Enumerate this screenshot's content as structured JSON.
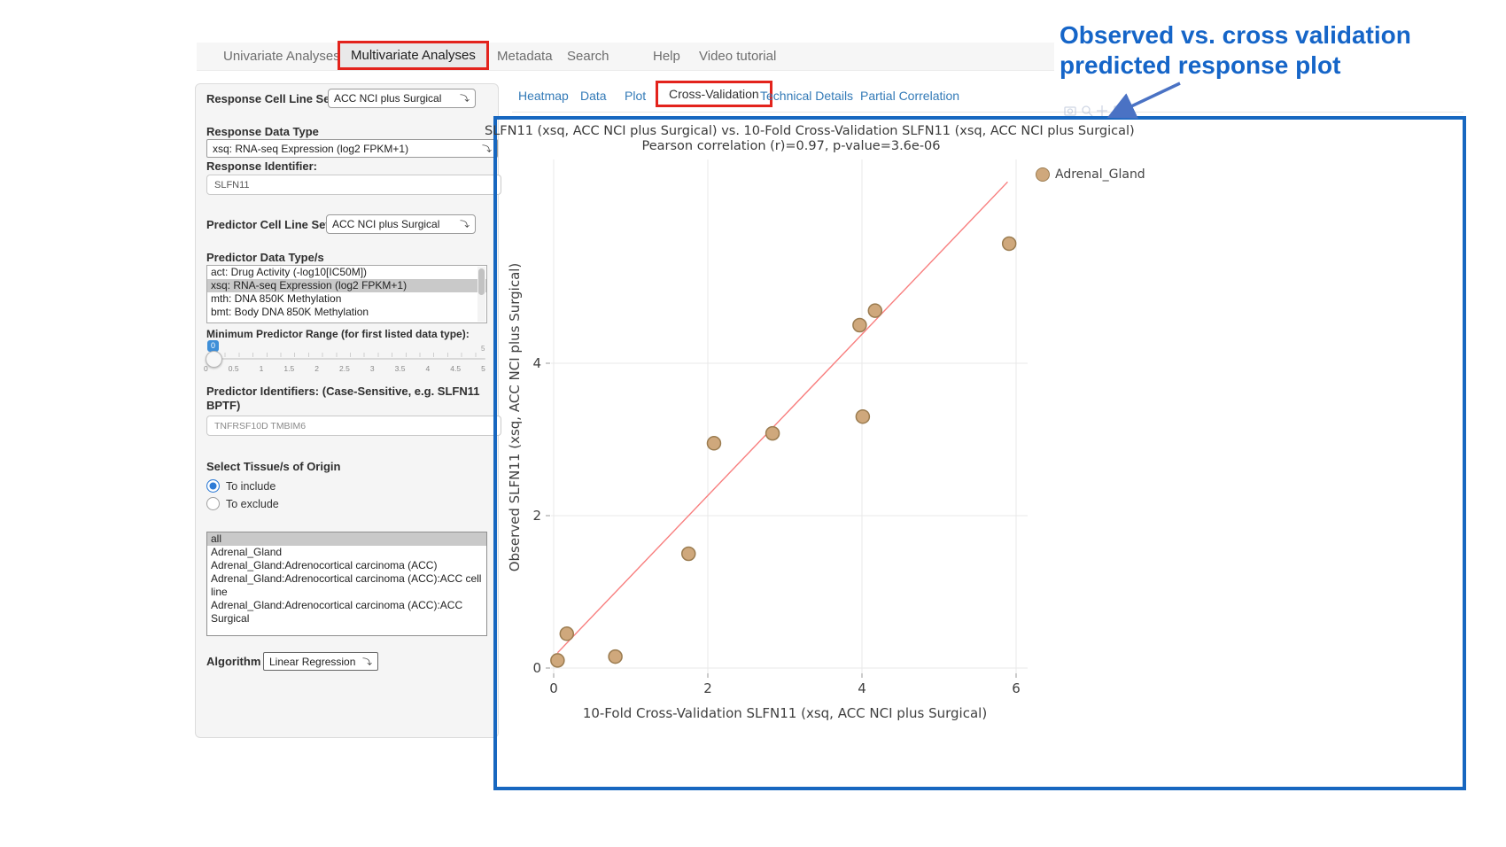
{
  "nav": {
    "items": [
      {
        "label": "Univariate Analyses"
      },
      {
        "label": "Multivariate Analyses"
      },
      {
        "label": "Metadata"
      },
      {
        "label": "Search"
      },
      {
        "label": "Help"
      },
      {
        "label": "Video tutorial"
      }
    ]
  },
  "tabs": {
    "items": [
      {
        "label": "Heatmap"
      },
      {
        "label": "Data"
      },
      {
        "label": "Plot"
      },
      {
        "label": "Cross-Validation"
      },
      {
        "label": "Technical Details"
      },
      {
        "label": "Partial Correlation"
      }
    ]
  },
  "sidebar": {
    "response_cell_line_set": {
      "label": "Response Cell Line Set",
      "value": "ACC NCI plus Surgical"
    },
    "response_data_type": {
      "label": "Response Data Type",
      "value": "xsq: RNA-seq Expression (log2 FPKM+1)"
    },
    "response_identifier": {
      "label": "Response Identifier:",
      "value": "SLFN11"
    },
    "predictor_cell_line_set": {
      "label": "Predictor Cell Line Set",
      "value": "ACC NCI plus Surgical"
    },
    "predictor_data_types": {
      "label": "Predictor Data Type/s",
      "options": [
        {
          "label": "act: Drug Activity (-log10[IC50M])",
          "selected": false
        },
        {
          "label": "xsq: RNA-seq Expression (log2 FPKM+1)",
          "selected": true
        },
        {
          "label": "mth: DNA 850K Methylation",
          "selected": false
        },
        {
          "label": "bmt: Body DNA 850K Methylation",
          "selected": false
        }
      ]
    },
    "min_predictor_range": {
      "label": "Minimum Predictor Range (for first listed data type):",
      "value": "0",
      "max_label": "5",
      "tick_labels": [
        "0",
        "0.5",
        "1",
        "1.5",
        "2",
        "2.5",
        "3",
        "3.5",
        "4",
        "4.5",
        "5"
      ]
    },
    "predictor_identifiers": {
      "label": "Predictor Identifiers: (Case-Sensitive, e.g. SLFN11 BPTF)",
      "value": "TNFRSF10D TMBIM6"
    },
    "tissue_origin": {
      "label": "Select Tissue/s of Origin",
      "options": [
        {
          "label": "To include",
          "selected": true
        },
        {
          "label": "To exclude",
          "selected": false
        }
      ]
    },
    "tissue_list": {
      "options": [
        {
          "label": "all",
          "selected": true
        },
        {
          "label": "Adrenal_Gland",
          "selected": false
        },
        {
          "label": "Adrenal_Gland:Adrenocortical carcinoma (ACC)",
          "selected": false
        },
        {
          "label": "Adrenal_Gland:Adrenocortical carcinoma (ACC):ACC cell line",
          "selected": false
        },
        {
          "label": "Adrenal_Gland:Adrenocortical carcinoma (ACC):ACC Surgical",
          "selected": false
        }
      ]
    },
    "algorithm": {
      "label": "Algorithm",
      "value": "Linear Regression"
    }
  },
  "annotation": {
    "line1": "Observed vs. cross validation",
    "line2": "predicted response plot",
    "color": "#1565c8"
  },
  "chart_data": {
    "type": "scatter",
    "title": "SLFN11 (xsq, ACC NCI plus Surgical) vs. 10-Fold Cross-Validation SLFN11 (xsq, ACC NCI plus Surgical)",
    "subtitle": "Pearson correlation (r)=0.97, p-value=3.6e-06",
    "xlabel": "10-Fold Cross-Validation SLFN11 (xsq, ACC NCI plus Surgical)",
    "ylabel": "Observed SLFN11 (xsq, ACC NCI plus Surgical)",
    "x_ticks": [
      0,
      2,
      4,
      6
    ],
    "y_ticks": [
      0,
      2,
      4
    ],
    "xlim": [
      -0.05,
      6.2
    ],
    "ylim": [
      -0.1,
      6.7
    ],
    "grid": true,
    "legend_position": "top-right",
    "pearson_r": 0.97,
    "p_value": "3.6e-06",
    "series": [
      {
        "name": "Adrenal_Gland",
        "marker_color": "#cfa87c",
        "marker_outline": "#9b7c50",
        "points": [
          [
            0.05,
            0.1
          ],
          [
            0.17,
            0.45
          ],
          [
            0.8,
            0.15
          ],
          [
            1.75,
            1.5
          ],
          [
            2.08,
            2.95
          ],
          [
            2.84,
            3.08
          ],
          [
            4.01,
            3.3
          ],
          [
            3.97,
            4.5
          ],
          [
            4.17,
            4.69
          ],
          [
            5.91,
            5.57
          ]
        ]
      }
    ],
    "trend_line": {
      "color": "#f87e7e",
      "x1": 0.05,
      "y1": 0.2,
      "x2": 5.89,
      "y2": 6.38
    }
  }
}
